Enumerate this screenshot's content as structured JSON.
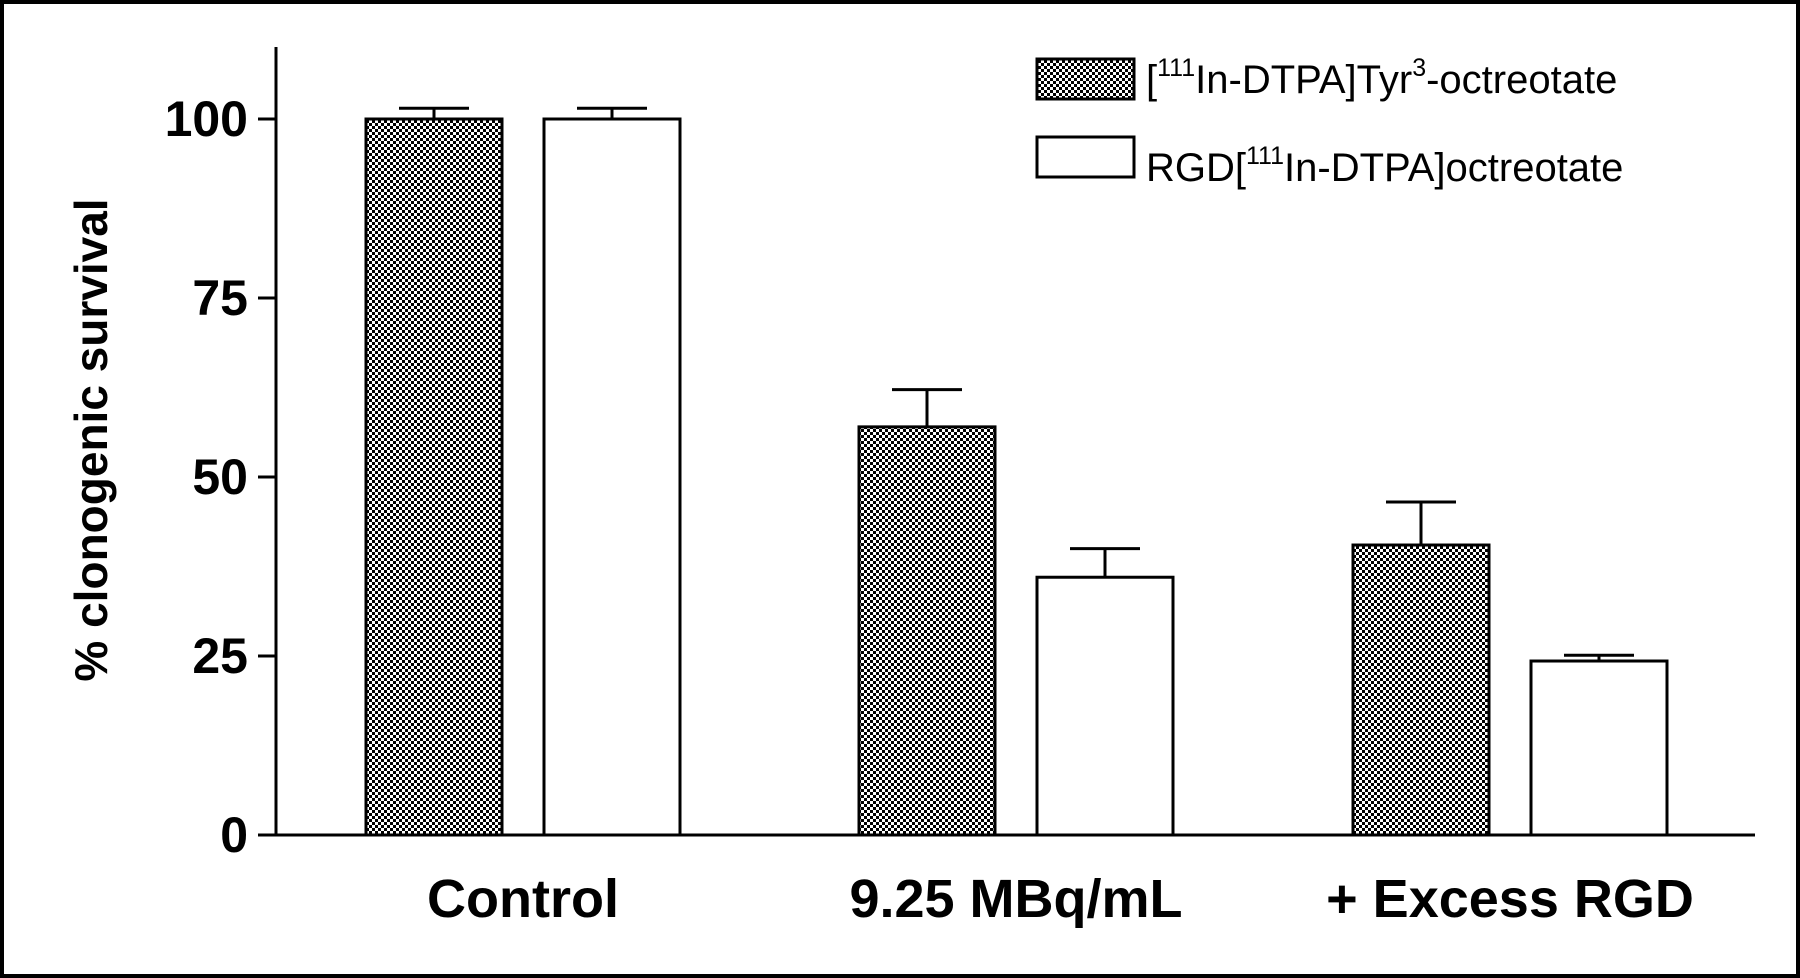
{
  "chart_data": {
    "type": "bar",
    "ylabel": "% clonogenic survival",
    "ylim": [
      0,
      110
    ],
    "yticks": [
      "0",
      "25",
      "50",
      "75",
      "100"
    ],
    "categories": [
      "Control",
      "9.25 MBq/mL",
      "+ Excess RGD"
    ],
    "series": [
      {
        "name": "[111In-DTPA]Tyr3-octreotate",
        "legend_parts": [
          "[",
          "111",
          "In-DTPA]Tyr",
          "3",
          "-octreotate"
        ],
        "fill": "checkered",
        "values": [
          100,
          57,
          40.5
        ],
        "errors": [
          1.5,
          5.2,
          6
        ]
      },
      {
        "name": "RGD[111In-DTPA]octreotate",
        "legend_parts": [
          "RGD[",
          "111",
          "In-DTPA]octreotate"
        ],
        "fill": "white",
        "values": [
          100,
          36,
          24.3
        ],
        "errors": [
          1.5,
          4,
          0.8
        ]
      }
    ],
    "legend_position": "top-right",
    "grid": false
  }
}
